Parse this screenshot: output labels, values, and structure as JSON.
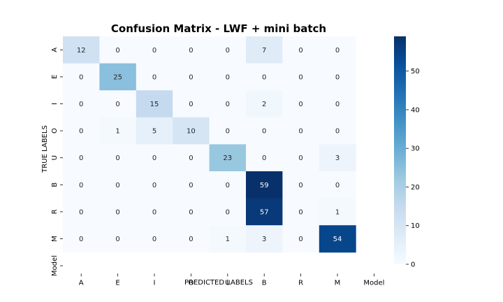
{
  "chart_data": {
    "type": "heatmap",
    "title": "Confusion Matrix - LWF + mini batch",
    "xlabel": "PREDICTED LABELS",
    "ylabel": "TRUE LABELS",
    "x_tick_labels": [
      "A",
      "E",
      "I",
      "O",
      "U",
      "B",
      "R",
      "M",
      "Model"
    ],
    "y_tick_labels": [
      "A",
      "E",
      "I",
      "O",
      "U",
      "B",
      "R",
      "M",
      "Model"
    ],
    "cells_x_labels": [
      "A",
      "E",
      "I",
      "O",
      "U",
      "B",
      "R",
      "M"
    ],
    "cells_y_labels": [
      "A",
      "E",
      "I",
      "O",
      "U",
      "B",
      "R",
      "M"
    ],
    "matrix": [
      [
        12,
        0,
        0,
        0,
        0,
        7,
        0,
        0
      ],
      [
        0,
        25,
        0,
        0,
        0,
        0,
        0,
        0
      ],
      [
        0,
        0,
        15,
        0,
        0,
        2,
        0,
        0
      ],
      [
        0,
        1,
        5,
        10,
        0,
        0,
        0,
        0
      ],
      [
        0,
        0,
        0,
        0,
        23,
        0,
        0,
        3
      ],
      [
        0,
        0,
        0,
        0,
        0,
        59,
        0,
        0
      ],
      [
        0,
        0,
        0,
        0,
        0,
        57,
        0,
        1
      ],
      [
        0,
        0,
        0,
        0,
        1,
        3,
        0,
        54
      ]
    ],
    "colormap": "Blues",
    "colormap_stops": [
      "#f7fbff",
      "#deebf7",
      "#c6dbef",
      "#9ecae1",
      "#6baed6",
      "#4292c6",
      "#2171b5",
      "#08519c",
      "#08306b"
    ],
    "value_range": [
      0,
      59
    ],
    "colorbar_ticks": [
      0,
      10,
      20,
      30,
      40,
      50
    ],
    "grid": false,
    "legend": "colorbar-right"
  }
}
